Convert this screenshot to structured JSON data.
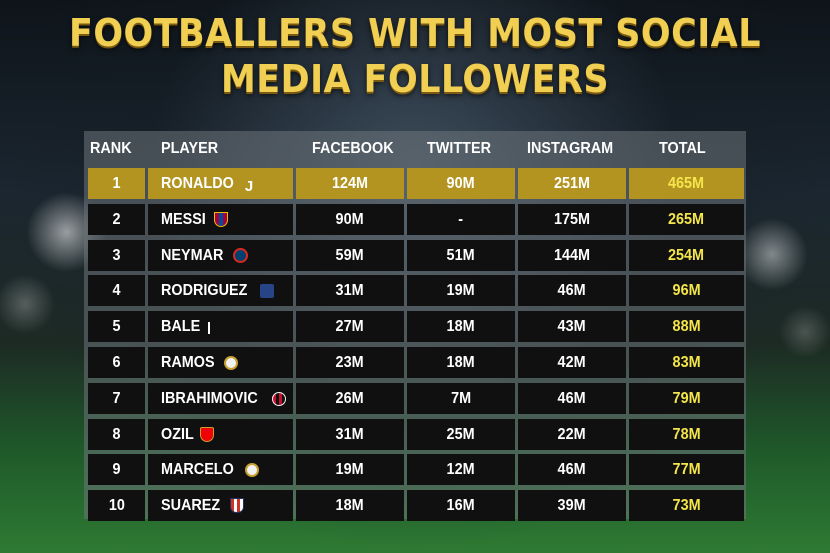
{
  "title": "FOOTBALLERS WITH MOST SOCIAL MEDIA FOLLOWERS",
  "headers": {
    "rank": "RANK",
    "player": "PLAYER",
    "facebook": "FACEBOOK",
    "twitter": "TWITTER",
    "instagram": "INSTAGRAM",
    "total": "TOTAL"
  },
  "rows": [
    {
      "rank": "1",
      "player": "RONALDO",
      "club_icon": "juventus-crest-icon",
      "facebook": "124M",
      "twitter": "90M",
      "instagram": "251M",
      "total": "465M"
    },
    {
      "rank": "2",
      "player": "MESSI",
      "club_icon": "barcelona-crest-icon",
      "facebook": "90M",
      "twitter": "-",
      "instagram": "175M",
      "total": "265M"
    },
    {
      "rank": "3",
      "player": "NEYMAR",
      "club_icon": "psg-crest-icon",
      "facebook": "59M",
      "twitter": "51M",
      "instagram": "144M",
      "total": "254M"
    },
    {
      "rank": "4",
      "player": "RODRIGUEZ",
      "club_icon": "everton-crest-icon",
      "facebook": "31M",
      "twitter": "19M",
      "instagram": "46M",
      "total": "96M"
    },
    {
      "rank": "5",
      "player": "BALE",
      "club_icon": "tottenham-crest-icon",
      "facebook": "27M",
      "twitter": "18M",
      "instagram": "43M",
      "total": "88M"
    },
    {
      "rank": "6",
      "player": "RAMOS",
      "club_icon": "real-madrid-crest-icon",
      "facebook": "23M",
      "twitter": "18M",
      "instagram": "42M",
      "total": "83M"
    },
    {
      "rank": "7",
      "player": "IBRAHIMOVIC",
      "club_icon": "ac-milan-crest-icon",
      "facebook": "26M",
      "twitter": "7M",
      "instagram": "46M",
      "total": "79M"
    },
    {
      "rank": "8",
      "player": "OZIL",
      "club_icon": "arsenal-crest-icon",
      "facebook": "31M",
      "twitter": "25M",
      "instagram": "22M",
      "total": "78M"
    },
    {
      "rank": "9",
      "player": "MARCELO",
      "club_icon": "real-madrid-crest-icon",
      "facebook": "19M",
      "twitter": "12M",
      "instagram": "46M",
      "total": "77M"
    },
    {
      "rank": "10",
      "player": "SUAREZ",
      "club_icon": "atletico-madrid-crest-icon",
      "facebook": "18M",
      "twitter": "16M",
      "instagram": "39M",
      "total": "73M"
    }
  ],
  "colors": {
    "title": "#f0cf52",
    "highlight_row": "#b39420",
    "total_text": "#f4e54a",
    "cell_bg": "#101010"
  }
}
